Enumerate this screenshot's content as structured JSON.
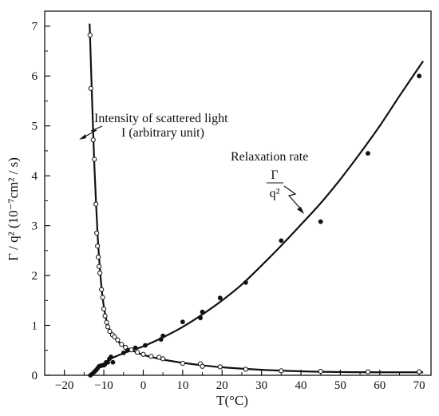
{
  "chart_data": {
    "type": "scatter",
    "title": "",
    "xlabel": "T(°C)",
    "ylabel": "Γ / q² (10⁻⁷cm² / s)",
    "xlim": [
      -25,
      73
    ],
    "ylim": [
      0,
      7.3
    ],
    "x_ticks": [
      "−20",
      "−10",
      "0",
      "10",
      "20",
      "30",
      "40",
      "50",
      "60",
      "70"
    ],
    "y_ticks": [
      "0",
      "1",
      "2",
      "3",
      "4",
      "5",
      "6",
      "7"
    ],
    "grid": false,
    "series": [
      {
        "name": "Intensity of scattered light I (arbitrary unit)",
        "marker": "open-circle",
        "points": [
          [
            -13.5,
            6.82
          ],
          [
            -13.3,
            5.75
          ],
          [
            -12.7,
            4.72
          ],
          [
            -12.4,
            4.33
          ],
          [
            -12.0,
            3.43
          ],
          [
            -11.8,
            2.85
          ],
          [
            -11.6,
            2.59
          ],
          [
            -11.4,
            2.37
          ],
          [
            -11.2,
            2.18
          ],
          [
            -11.0,
            2.05
          ],
          [
            -10.6,
            1.72
          ],
          [
            -10.3,
            1.56
          ],
          [
            -10.0,
            1.33
          ],
          [
            -9.7,
            1.19
          ],
          [
            -9.3,
            1.06
          ],
          [
            -9.0,
            0.97
          ],
          [
            -8.5,
            0.88
          ],
          [
            -7.8,
            0.81
          ],
          [
            -7.3,
            0.77
          ],
          [
            -6.5,
            0.71
          ],
          [
            -5.5,
            0.62
          ],
          [
            -4.5,
            0.56
          ],
          [
            -3.0,
            0.51
          ],
          [
            -1.5,
            0.46
          ],
          [
            0.0,
            0.42
          ],
          [
            2.0,
            0.38
          ],
          [
            4.0,
            0.36
          ],
          [
            5.0,
            0.33
          ],
          [
            10.0,
            0.24
          ],
          [
            14.5,
            0.23
          ],
          [
            15.0,
            0.18
          ],
          [
            19.5,
            0.17
          ],
          [
            26.0,
            0.12
          ],
          [
            35.0,
            0.09
          ],
          [
            45.0,
            0.08
          ],
          [
            57.0,
            0.07
          ],
          [
            70.0,
            0.07
          ]
        ],
        "curve": [
          [
            -13.6,
            7.05
          ],
          [
            -13.2,
            6.05
          ],
          [
            -12.8,
            5.1
          ],
          [
            -12.4,
            4.2
          ],
          [
            -12.0,
            3.5
          ],
          [
            -11.6,
            2.85
          ],
          [
            -11.2,
            2.35
          ],
          [
            -10.8,
            1.95
          ],
          [
            -10.4,
            1.62
          ],
          [
            -10.0,
            1.38
          ],
          [
            -9.5,
            1.16
          ],
          [
            -9.0,
            1.0
          ],
          [
            -8.0,
            0.83
          ],
          [
            -7.0,
            0.73
          ],
          [
            -6.0,
            0.65
          ],
          [
            -4.0,
            0.54
          ],
          [
            -2.0,
            0.47
          ],
          [
            0.0,
            0.41
          ],
          [
            3.0,
            0.35
          ],
          [
            6.0,
            0.3
          ],
          [
            10.0,
            0.25
          ],
          [
            15.0,
            0.2
          ],
          [
            20.0,
            0.16
          ],
          [
            30.0,
            0.11
          ],
          [
            40.0,
            0.08
          ],
          [
            50.0,
            0.065
          ],
          [
            60.0,
            0.06
          ],
          [
            71.0,
            0.06
          ]
        ]
      },
      {
        "name": "Relaxation rate Γ/q²",
        "marker": "filled-circle",
        "points": [
          [
            -13.4,
            0.0
          ],
          [
            -12.9,
            0.03
          ],
          [
            -12.4,
            0.07
          ],
          [
            -12.0,
            0.1
          ],
          [
            -11.6,
            0.14
          ],
          [
            -11.2,
            0.18
          ],
          [
            -10.8,
            0.19
          ],
          [
            -10.4,
            0.2
          ],
          [
            -10.0,
            0.2
          ],
          [
            -9.7,
            0.22
          ],
          [
            -9.4,
            0.26
          ],
          [
            -9.0,
            0.26
          ],
          [
            -8.6,
            0.33
          ],
          [
            -8.2,
            0.37
          ],
          [
            -7.7,
            0.26
          ],
          [
            -5.0,
            0.45
          ],
          [
            -4.0,
            0.5
          ],
          [
            -2.0,
            0.55
          ],
          [
            0.5,
            0.6
          ],
          [
            4.5,
            0.72
          ],
          [
            5.0,
            0.79
          ],
          [
            10.0,
            1.07
          ],
          [
            14.5,
            1.15
          ],
          [
            15.0,
            1.27
          ],
          [
            19.5,
            1.55
          ],
          [
            26.0,
            1.86
          ],
          [
            35.0,
            2.7
          ],
          [
            45.0,
            3.08
          ],
          [
            57.0,
            4.45
          ],
          [
            70.0,
            6.0
          ]
        ],
        "curve": [
          [
            -13.4,
            0.0
          ],
          [
            -12.5,
            0.06
          ],
          [
            -11.5,
            0.13
          ],
          [
            -10.5,
            0.2
          ],
          [
            -9.5,
            0.27
          ],
          [
            -8.0,
            0.34
          ],
          [
            -6.0,
            0.41
          ],
          [
            -3.0,
            0.5
          ],
          [
            0.0,
            0.58
          ],
          [
            5.0,
            0.76
          ],
          [
            10.0,
            0.97
          ],
          [
            15.0,
            1.22
          ],
          [
            20.0,
            1.5
          ],
          [
            25.0,
            1.82
          ],
          [
            30.0,
            2.2
          ],
          [
            35.0,
            2.6
          ],
          [
            40.0,
            3.02
          ],
          [
            45.0,
            3.45
          ],
          [
            50.0,
            3.93
          ],
          [
            55.0,
            4.45
          ],
          [
            60.0,
            5.0
          ],
          [
            65.0,
            5.6
          ],
          [
            71.0,
            6.3
          ]
        ]
      }
    ],
    "annotations": {
      "intensity_line1": "Intensity of scattered light",
      "intensity_line2": "I (arbitrary unit)",
      "relax_title": "Relaxation rate",
      "relax_numer": "Γ",
      "relax_denom": "q²"
    }
  }
}
